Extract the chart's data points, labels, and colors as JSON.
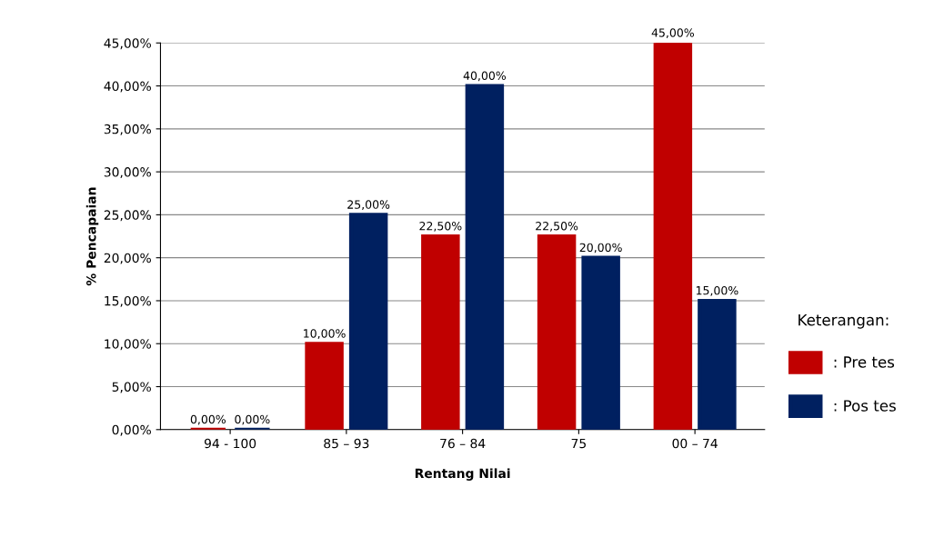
{
  "chart_data": {
    "type": "bar",
    "xlabel": "Rentang Nilai",
    "ylabel": "% Pencapaian",
    "legend_title": "Keterangan:",
    "legend": "right",
    "categories": [
      "94 - 100",
      "85 – 93",
      "76 – 84",
      "75",
      "00 – 74"
    ],
    "series": [
      {
        "name": ": Pre tes",
        "color": "#c00000",
        "values": [
          0,
          10,
          22.5,
          22.5,
          45
        ],
        "value_labels": [
          "0,00%",
          "10,00%",
          "22,50%",
          "22,50%",
          "45,00%"
        ]
      },
      {
        "name": ": Pos tes",
        "color": "#002060",
        "values": [
          0,
          25,
          40,
          20,
          15
        ],
        "value_labels": [
          "0,00%",
          "25,00%",
          "40,00%",
          "20,00%",
          "15,00%"
        ]
      }
    ],
    "ylim": [
      0,
      45
    ],
    "yticks": [
      {
        "value": 0,
        "label": "0,00%"
      },
      {
        "value": 5,
        "label": "5,00%"
      },
      {
        "value": 10,
        "label": "10,00%"
      },
      {
        "value": 15,
        "label": "15,00%"
      },
      {
        "value": 20,
        "label": "20,00%"
      },
      {
        "value": 25,
        "label": "25,00%"
      },
      {
        "value": 30,
        "label": "30,00%"
      },
      {
        "value": 35,
        "label": "35,00%"
      },
      {
        "value": 40,
        "label": "40,00%"
      },
      {
        "value": 45,
        "label": "45,00%"
      }
    ],
    "grid": "y"
  }
}
